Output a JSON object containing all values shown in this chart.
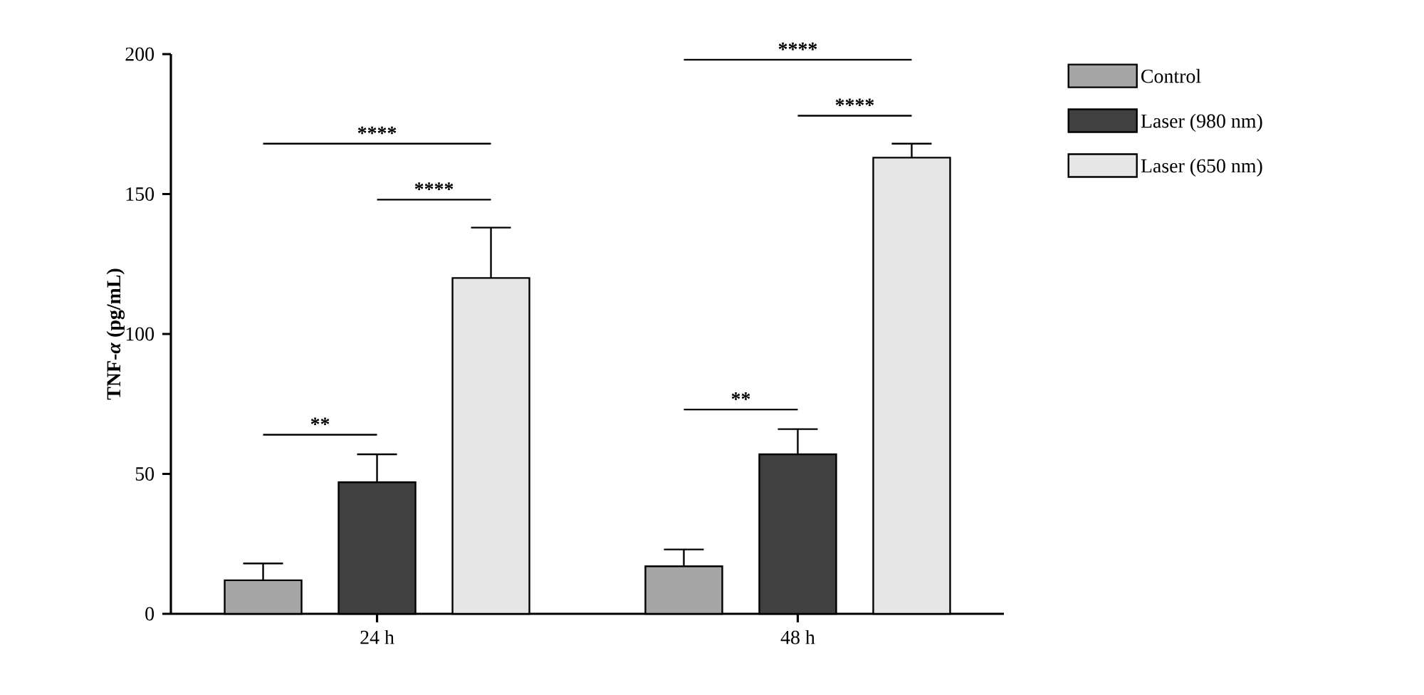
{
  "chart_data": {
    "type": "bar",
    "ylabel": "TNF-*α* (pg/mL)",
    "categories": [
      "24 h",
      "48 h"
    ],
    "series": [
      {
        "name": "Control",
        "color": "#a6a6a6",
        "values": [
          12,
          17
        ],
        "errors": [
          [
            12,
            18
          ],
          [
            17,
            23
          ]
        ]
      },
      {
        "name": "Laser (980 nm)",
        "color": "#404040",
        "values": [
          47,
          57
        ],
        "errors": [
          [
            47,
            57
          ],
          [
            57,
            66
          ]
        ]
      },
      {
        "name": "Laser (650 nm)",
        "color": "#e6e6e6",
        "values": [
          120,
          163
        ],
        "errors": [
          [
            120,
            138
          ],
          [
            163,
            168
          ]
        ]
      }
    ],
    "ylim": [
      0,
      200
    ],
    "yticks": [
      0,
      50,
      100,
      150,
      200
    ],
    "legend": "right",
    "annotations": [
      "**",
      "****",
      "****",
      "**",
      "****",
      "****"
    ]
  }
}
